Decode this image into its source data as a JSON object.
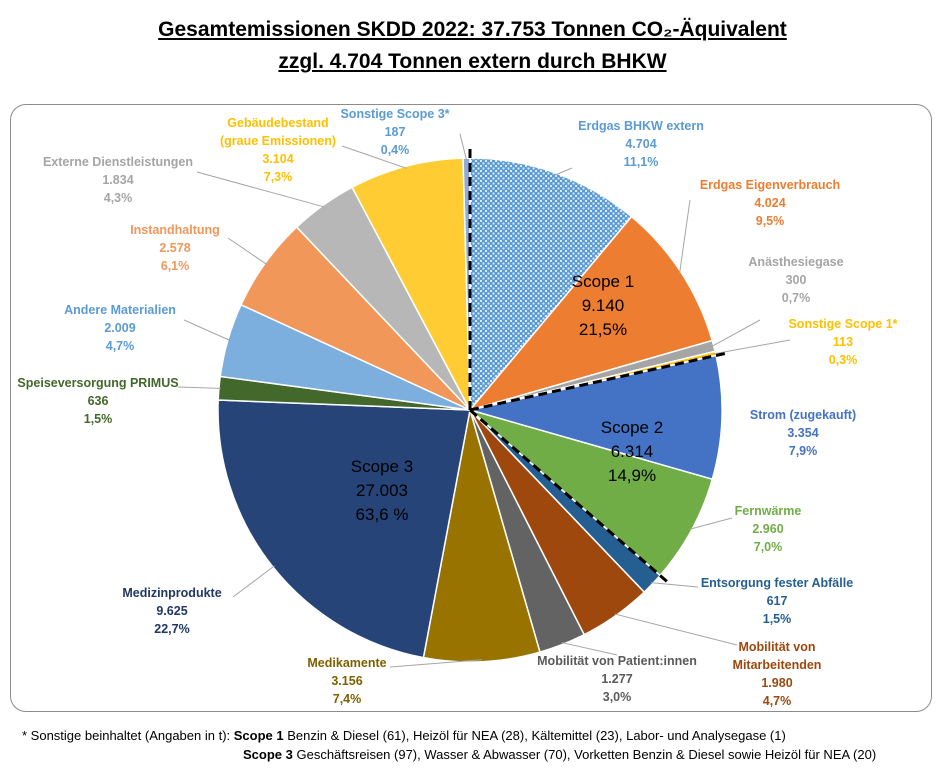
{
  "title_line1": "Gesamtemissionen SKDD 2022: 37.753 Tonnen CO₂-Äquivalent",
  "title_line2": "zzgl. 4.704 Tonnen extern durch BHKW",
  "footnote": {
    "intro": "* Sonstige beinhaltet (Angaben in t): ",
    "scope1_label": "Scope 1",
    "scope1_text": " Benzin & Diesel (61), Heizöl für NEA (28), Kältemittel (23), Labor- und Analysegase (1)",
    "scope3_label": "Scope 3",
    "scope3_text": " Geschäftsreisen (97), Wasser & Abwasser (70), Vorketten Benzin & Diesel sowie Heizöl für NEA (20)"
  },
  "chart_data": {
    "type": "pie",
    "unit": "t CO₂-Äquivalent",
    "slices": [
      {
        "name": "Erdgas BHKW extern",
        "value": 4704,
        "value_label": "4.704",
        "percent": "11,1%",
        "color": "#5b9bd5",
        "pattern": "dotted"
      },
      {
        "name": "Erdgas Eigenverbrauch",
        "value": 4024,
        "value_label": "4.024",
        "percent": "9,5%",
        "color": "#ed7d31"
      },
      {
        "name": "Anästhesiegase",
        "value": 300,
        "value_label": "300",
        "percent": "0,7%",
        "color": "#a5a5a5"
      },
      {
        "name": "Sonstige Scope 1*",
        "value": 113,
        "value_label": "113",
        "percent": "0,3%",
        "color": "#ffc000"
      },
      {
        "name": "Strom (zugekauft)",
        "value": 3354,
        "value_label": "3.354",
        "percent": "7,9%",
        "color": "#4472c4"
      },
      {
        "name": "Fernwärme",
        "value": 2960,
        "value_label": "2.960",
        "percent": "7,0%",
        "color": "#70ad47"
      },
      {
        "name": "Entsorgung fester Abfälle",
        "value": 617,
        "value_label": "617",
        "percent": "1,5%",
        "color": "#255e91"
      },
      {
        "name": "Mobilität von Mitarbeitenden",
        "value": 1980,
        "value_label": "1.980",
        "percent": "4,7%",
        "color": "#9e480e"
      },
      {
        "name": "Mobilität von Patient:innen",
        "value": 1277,
        "value_label": "1.277",
        "percent": "3,0%",
        "color": "#636363"
      },
      {
        "name": "Medikamente",
        "value": 3156,
        "value_label": "3.156",
        "percent": "7,4%",
        "color": "#997300"
      },
      {
        "name": "Medizinprodukte",
        "value": 9625,
        "value_label": "9.625",
        "percent": "22,7%",
        "color": "#264478"
      },
      {
        "name": "Speiseversorgung PRIMUS",
        "value": 636,
        "value_label": "636",
        "percent": "1,5%",
        "color": "#43682b"
      },
      {
        "name": "Andere Materialien",
        "value": 2009,
        "value_label": "2.009",
        "percent": "4,7%",
        "color": "#7cafdd"
      },
      {
        "name": "Instandhaltung",
        "value": 2578,
        "value_label": "2.578",
        "percent": "6,1%",
        "color": "#f1975a"
      },
      {
        "name": "Externe Dienstleistungen",
        "value": 1834,
        "value_label": "1.834",
        "percent": "4,3%",
        "color": "#b7b7b7"
      },
      {
        "name": "Gebäudebestand (graue Emissionen)",
        "value": 3104,
        "value_label": "3.104",
        "percent": "7,3%",
        "color": "#ffcd33"
      },
      {
        "name": "Sonstige Scope 3*",
        "value": 187,
        "value_label": "187",
        "percent": "0,4%",
        "color": "#8faadc"
      }
    ],
    "scopes": [
      {
        "name": "Scope 1",
        "value_label": "9.140",
        "percent": "21,5%"
      },
      {
        "name": "Scope 2",
        "value_label": "6.314",
        "percent": "14,9%"
      },
      {
        "name": "Scope 3",
        "value_label": "27.003",
        "percent": "63,6 %"
      }
    ]
  }
}
